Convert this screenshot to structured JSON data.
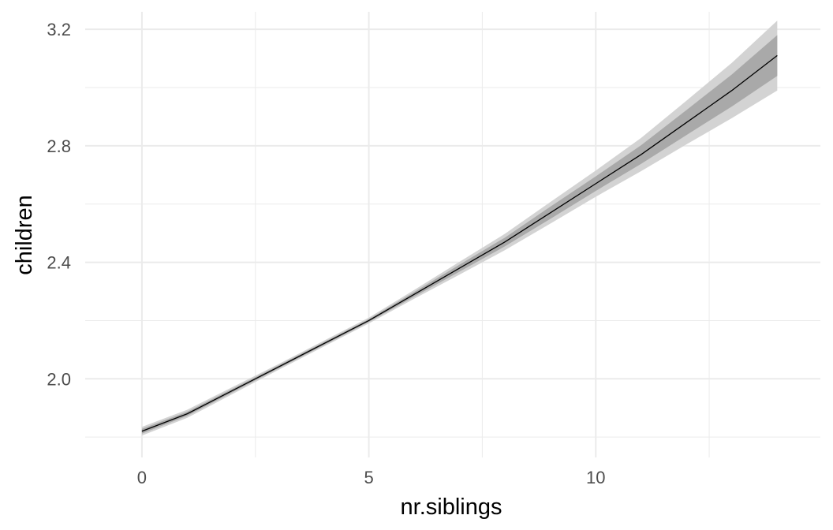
{
  "chart_data": {
    "type": "line",
    "xlabel": "nr.siblings",
    "ylabel": "children",
    "xlim": [
      -1.25,
      14.95
    ],
    "ylim": [
      1.73,
      3.26
    ],
    "x_ticks": [
      0,
      5,
      10
    ],
    "x_tick_labels": [
      "0",
      "5",
      "10"
    ],
    "x_minor_ticks": [
      2.5,
      7.5,
      12.5
    ],
    "y_ticks": [
      2.0,
      2.4,
      2.8,
      3.2
    ],
    "y_tick_labels": [
      "2.0",
      "2.4",
      "2.8",
      "3.2"
    ],
    "y_minor_ticks": [
      1.8,
      2.2,
      2.6,
      3.0
    ],
    "grid": true,
    "series": [
      {
        "x": [
          0,
          1,
          2,
          3,
          4,
          5,
          6,
          7,
          8,
          9,
          10,
          11,
          12,
          13,
          14
        ],
        "y": [
          1.82,
          1.88,
          1.96,
          2.04,
          2.12,
          2.2,
          2.29,
          2.38,
          2.47,
          2.57,
          2.67,
          2.77,
          2.88,
          2.99,
          3.11
        ],
        "inner_band_lower": [
          1.812,
          1.873,
          1.954,
          2.035,
          2.115,
          2.195,
          2.282,
          2.368,
          2.455,
          2.549,
          2.645,
          2.738,
          2.837,
          2.935,
          3.04
        ],
        "inner_band_upper": [
          1.828,
          1.887,
          1.966,
          2.045,
          2.125,
          2.205,
          2.298,
          2.392,
          2.485,
          2.591,
          2.695,
          2.802,
          2.923,
          3.045,
          3.18
        ],
        "outer_band_lower": [
          1.805,
          1.866,
          1.948,
          2.03,
          2.11,
          2.19,
          2.275,
          2.358,
          2.442,
          2.533,
          2.625,
          2.713,
          2.805,
          2.895,
          2.99
        ],
        "outer_band_upper": [
          1.835,
          1.894,
          1.972,
          2.05,
          2.13,
          2.21,
          2.305,
          2.402,
          2.498,
          2.607,
          2.715,
          2.827,
          2.955,
          3.085,
          3.23
        ]
      }
    ],
    "colors": {
      "line": "#000000",
      "inner_band": "#a9a9a9",
      "outer_band": "#d3d3d3",
      "grid": "#ebebeb"
    }
  }
}
